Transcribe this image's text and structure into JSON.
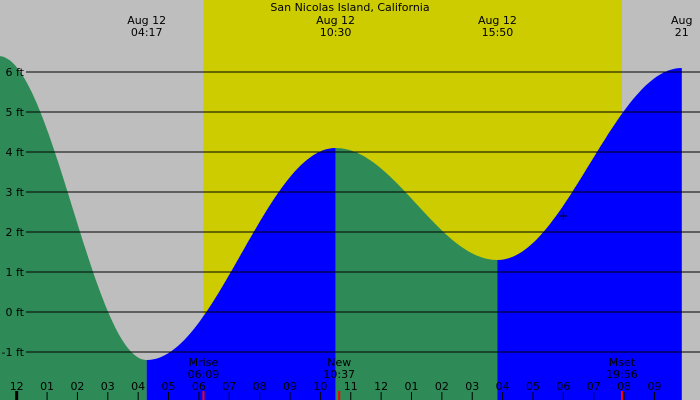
{
  "title": "San Nicolas Island, California",
  "colors": {
    "night": "#bebebe",
    "day": "#cccc00",
    "falling": "#2e8b57",
    "rising": "#0000ff",
    "grid": "#000000",
    "sun_event_line": "#ff0000"
  },
  "chart_data": {
    "type": "area",
    "title": "San Nicolas Island, California",
    "unit": "ft",
    "x_range_hours": [
      -0.55,
      22.5
    ],
    "y_range_ft": [
      -2.2,
      7.8
    ],
    "y_ticks": [
      {
        "value": -1,
        "label": "-1 ft"
      },
      {
        "value": 0,
        "label": "0 ft"
      },
      {
        "value": 1,
        "label": "1 ft"
      },
      {
        "value": 2,
        "label": "2 ft"
      },
      {
        "value": 3,
        "label": "3 ft"
      },
      {
        "value": 4,
        "label": "4 ft"
      },
      {
        "value": 5,
        "label": "5 ft"
      },
      {
        "value": 6,
        "label": "6 ft"
      }
    ],
    "hour_ticks": [
      {
        "hour": -1,
        "label": "11"
      },
      {
        "hour": 0,
        "label": "12"
      },
      {
        "hour": 1,
        "label": "01"
      },
      {
        "hour": 2,
        "label": "02"
      },
      {
        "hour": 3,
        "label": "03"
      },
      {
        "hour": 4,
        "label": "04"
      },
      {
        "hour": 5,
        "label": "05"
      },
      {
        "hour": 6,
        "label": "06"
      },
      {
        "hour": 7,
        "label": "07"
      },
      {
        "hour": 8,
        "label": "08"
      },
      {
        "hour": 9,
        "label": "09"
      },
      {
        "hour": 10,
        "label": "10"
      },
      {
        "hour": 11,
        "label": "11"
      },
      {
        "hour": 12,
        "label": "12"
      },
      {
        "hour": 13,
        "label": "01"
      },
      {
        "hour": 14,
        "label": "02"
      },
      {
        "hour": 15,
        "label": "03"
      },
      {
        "hour": 16,
        "label": "04"
      },
      {
        "hour": 17,
        "label": "05"
      },
      {
        "hour": 18,
        "label": "06"
      },
      {
        "hour": 19,
        "label": "07"
      },
      {
        "hour": 20,
        "label": "08"
      },
      {
        "hour": 21,
        "label": "09"
      }
    ],
    "extremes": [
      {
        "hour": -0.6,
        "height": 6.4,
        "type": "high"
      },
      {
        "hour": 4.28,
        "height": -1.2,
        "type": "low",
        "date": "Aug 12",
        "time": "04:17"
      },
      {
        "hour": 10.5,
        "height": 4.1,
        "type": "high",
        "date": "Aug 12",
        "time": "10:30"
      },
      {
        "hour": 15.83,
        "height": 1.3,
        "type": "low",
        "date": "Aug 12",
        "time": "15:50"
      },
      {
        "hour": 21.9,
        "height": 6.1,
        "type": "high",
        "date": "Aug",
        "time": "21"
      }
    ],
    "daylight": {
      "start_hour": 6.15,
      "end_hour": 19.93
    },
    "sun_moon_events": [
      {
        "hour": 6.15,
        "name": "Mrise",
        "time": "06:09"
      },
      {
        "hour": 10.62,
        "name": "New",
        "time": "10:37"
      },
      {
        "hour": 19.93,
        "name": "Mset",
        "time": "19:56"
      }
    ],
    "current_marker": {
      "hour": 18.0,
      "height": 2.4
    }
  }
}
